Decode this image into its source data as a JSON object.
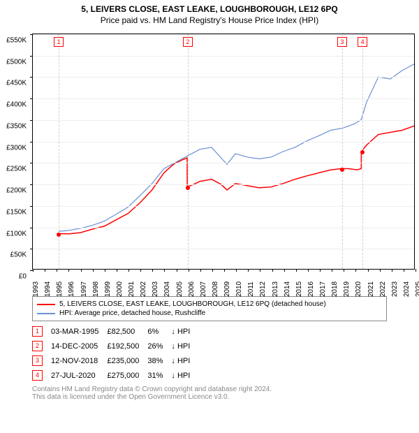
{
  "title_line1": "5, LEIVERS CLOSE, EAST LEAKE, LOUGHBOROUGH, LE12 6PQ",
  "title_line2": "Price paid vs. HM Land Registry's House Price Index (HPI)",
  "chart": {
    "type": "line",
    "background_color": "#ffffff",
    "axis_color": "#000000",
    "grid_color": "#eeeeee",
    "marker_line_color": "#d0d0d0",
    "title_fontsize": 12,
    "label_fontsize": 10,
    "ylim": [
      0,
      550000
    ],
    "ytick_step": 50000,
    "yprefix": "£",
    "ysuffix": "K",
    "xlim": [
      1993,
      2025
    ],
    "xtick_step": 1,
    "series": [
      {
        "name": "5, LEIVERS CLOSE, EAST LEAKE, LOUGHBOROUGH, LE12 6PQ (detached house)",
        "color": "#ff0000",
        "line_width": 1.5,
        "x": [
          1995.17,
          1996,
          1997,
          1998,
          1999,
          2000,
          2001,
          2002,
          2003,
          2004,
          2004.8,
          2005.5,
          2005.95,
          2005.96,
          2006.5,
          2007,
          2008,
          2008.8,
          2009.3,
          2010,
          2011,
          2012,
          2013,
          2014,
          2015,
          2016,
          2017,
          2018,
          2018.86,
          2019.5,
          2020.2,
          2020.56,
          2020.57,
          2021,
          2022,
          2023,
          2024,
          2025
        ],
        "y": [
          82500,
          82000,
          85000,
          93000,
          100000,
          115000,
          130000,
          155000,
          185000,
          225000,
          245000,
          255000,
          260000,
          192500,
          198000,
          205000,
          210000,
          198000,
          185000,
          200000,
          195000,
          190000,
          192000,
          200000,
          210000,
          218000,
          225000,
          232000,
          235000,
          235000,
          232000,
          235000,
          275000,
          290000,
          315000,
          320000,
          325000,
          335000
        ]
      },
      {
        "name": "HPI: Average price, detached house, Rushcliffe",
        "color": "#6b8fd4",
        "line_width": 1.2,
        "x": [
          1995.17,
          1996,
          1997,
          1998,
          1999,
          2000,
          2001,
          2002,
          2003,
          2004,
          2005,
          2006,
          2007,
          2008,
          2008.8,
          2009.3,
          2010,
          2011,
          2012,
          2013,
          2014,
          2015,
          2016,
          2017,
          2018,
          2019,
          2020,
          2020.57,
          2021,
          2022,
          2023,
          2024,
          2025
        ],
        "y": [
          88000,
          90000,
          95000,
          102000,
          112000,
          128000,
          145000,
          172000,
          200000,
          235000,
          250000,
          265000,
          280000,
          285000,
          260000,
          245000,
          270000,
          262000,
          258000,
          262000,
          275000,
          285000,
          300000,
          312000,
          325000,
          330000,
          340000,
          350000,
          390000,
          450000,
          445000,
          465000,
          480000
        ]
      }
    ],
    "sale_markers": [
      {
        "n": "1",
        "x": 1995.17,
        "y": 82500
      },
      {
        "n": "2",
        "x": 2005.96,
        "y": 192500
      },
      {
        "n": "3",
        "x": 2018.86,
        "y": 235000
      },
      {
        "n": "4",
        "x": 2020.57,
        "y": 275000
      }
    ]
  },
  "legend": {
    "items": [
      {
        "color": "#ff0000",
        "label": "5, LEIVERS CLOSE, EAST LEAKE, LOUGHBOROUGH, LE12 6PQ (detached house)"
      },
      {
        "color": "#6b8fd4",
        "label": "HPI: Average price, detached house, Rushcliffe"
      }
    ]
  },
  "transactions": {
    "arrow": "↓",
    "hpi_label": "HPI",
    "rows": [
      {
        "n": "1",
        "date": "03-MAR-1995",
        "price": "£82,500",
        "pct": "6%",
        "dir": "↓"
      },
      {
        "n": "2",
        "date": "14-DEC-2005",
        "price": "£192,500",
        "pct": "26%",
        "dir": "↓"
      },
      {
        "n": "3",
        "date": "12-NOV-2018",
        "price": "£235,000",
        "pct": "38%",
        "dir": "↓"
      },
      {
        "n": "4",
        "date": "27-JUL-2020",
        "price": "£275,000",
        "pct": "31%",
        "dir": "↓"
      }
    ]
  },
  "footer_line1": "Contains HM Land Registry data © Crown copyright and database right 2024.",
  "footer_line2": "This data is licensed under the Open Government Licence v3.0."
}
